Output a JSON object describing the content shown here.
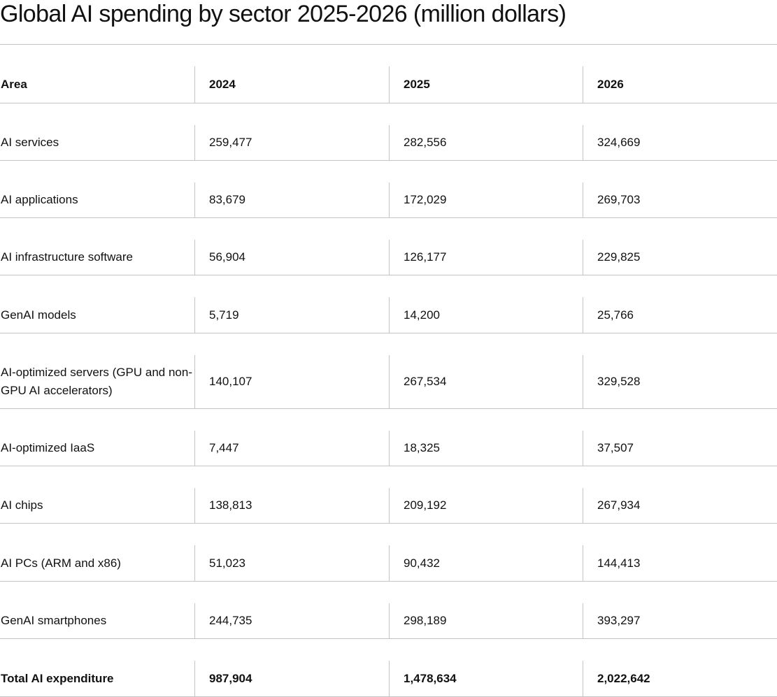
{
  "title": "Global AI spending by sector 2025-2026 (million dollars)",
  "table": {
    "headers": [
      "Area",
      "2024",
      "2025",
      "2026"
    ],
    "rows": [
      [
        "AI services",
        "259,477",
        "282,556",
        "324,669"
      ],
      [
        "AI applications",
        "83,679",
        "172,029",
        "269,703"
      ],
      [
        "AI infrastructure software",
        "56,904",
        "126,177",
        "229,825"
      ],
      [
        "GenAI models",
        "5,719",
        "14,200",
        "25,766"
      ],
      [
        "AI-optimized servers (GPU and non-GPU AI accelerators)",
        "140,107",
        "267,534",
        "329,528"
      ],
      [
        "AI-optimized IaaS",
        "7,447",
        "18,325",
        "37,507"
      ],
      [
        "AI chips",
        "138,813",
        "209,192",
        "267,934"
      ],
      [
        "AI PCs (ARM and x86)",
        "51,023",
        "90,432",
        "144,413"
      ],
      [
        "GenAI smartphones",
        "244,735",
        "298,189",
        "393,297"
      ]
    ],
    "total": [
      "Total AI expenditure",
      "987,904",
      "1,478,634",
      "2,022,642"
    ]
  }
}
